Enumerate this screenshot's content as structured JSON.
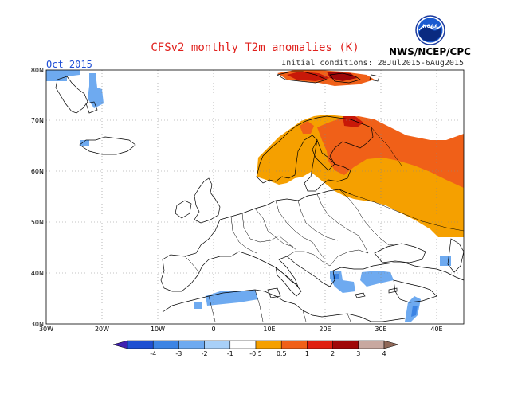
{
  "title": "CFSv2 monthly T2m anomalies (K)",
  "period": "Oct 2015",
  "initial_conditions": "Initial conditions: 28Jul2015-6Aug2015",
  "agency": "NWS/NCEP/CPC",
  "logo_text": "NOAA",
  "lat_labels": [
    "80N",
    "70N",
    "60N",
    "50N",
    "40N",
    "30N"
  ],
  "lon_labels": [
    "30W",
    "20W",
    "10W",
    "0",
    "10E",
    "20E",
    "30E",
    "40E"
  ],
  "colorbar": {
    "labels": [
      "-4",
      "-3",
      "-2",
      "-1",
      "-0.5",
      "0.5",
      "1",
      "2",
      "3",
      "4"
    ],
    "colors": [
      "#4020b0",
      "#1e50d2",
      "#3c84e4",
      "#6eaaf0",
      "#a8d0f8",
      "#ffffff",
      "#f5a000",
      "#f06018",
      "#e02010",
      "#a00808",
      "#c8a8a0",
      "#906858"
    ]
  }
}
